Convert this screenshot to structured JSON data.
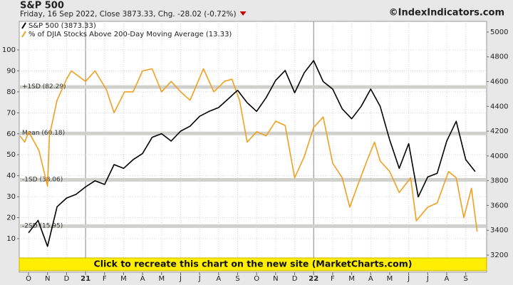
{
  "chart_data": {
    "type": "line",
    "title": "S&P 500",
    "subtitle": "Friday, 16 Sep 2022, Close 3873.33, Chg. -28.02 (-0.72%)",
    "watermark": "©IndexIndicators.com",
    "banner": "Click to recreate this chart on the new site (MarketCharts.com)",
    "xlim": [
      -0.49,
      24.1
    ],
    "xticks": [
      {
        "value": 0,
        "label": "O"
      },
      {
        "value": 1,
        "label": "N"
      },
      {
        "value": 2,
        "label": "D"
      },
      {
        "value": 3,
        "label": "21"
      },
      {
        "value": 4,
        "label": "F"
      },
      {
        "value": 5,
        "label": "M"
      },
      {
        "value": 6,
        "label": "A"
      },
      {
        "value": 7,
        "label": "M"
      },
      {
        "value": 8,
        "label": "J"
      },
      {
        "value": 9,
        "label": "J"
      },
      {
        "value": 10,
        "label": "A"
      },
      {
        "value": 11,
        "label": "S"
      },
      {
        "value": 12,
        "label": "O"
      },
      {
        "value": 13,
        "label": "N"
      },
      {
        "value": 14,
        "label": "D"
      },
      {
        "value": 15,
        "label": "22"
      },
      {
        "value": 16,
        "label": "F"
      },
      {
        "value": 17,
        "label": "M"
      },
      {
        "value": 18,
        "label": "A"
      },
      {
        "value": 19,
        "label": "M"
      },
      {
        "value": 20,
        "label": "J"
      },
      {
        "value": 21,
        "label": "J"
      },
      {
        "value": 22,
        "label": "A"
      },
      {
        "value": 23,
        "label": "S"
      }
    ],
    "year_ticks": [
      3,
      15
    ],
    "ylim": [
      -6,
      113.6
    ],
    "yticks": [
      10,
      20,
      30,
      40,
      50,
      60,
      70,
      80,
      90,
      100
    ],
    "y2lim": [
      3062,
      5086
    ],
    "y2ticks": [
      3200,
      3400,
      3600,
      3800,
      4000,
      4200,
      4400,
      4600,
      4800,
      5000
    ],
    "grid": true,
    "legend": "top-left",
    "bands": [
      {
        "label": "+1SD (82.29)",
        "value": 82.29
      },
      {
        "label": "Mean (60.18)",
        "value": 60.18
      },
      {
        "label": "-1SD (38.06)",
        "value": 38.06
      },
      {
        "label": "-2SD (15.95)",
        "value": 15.95
      }
    ],
    "series": [
      {
        "name": "S&P 500 (3873.33)",
        "color": "#000000",
        "axis": "y2",
        "x": [
          0,
          0.5,
          1,
          1.5,
          2,
          2.5,
          3,
          3.5,
          4,
          4.5,
          5,
          5.5,
          6,
          6.5,
          7,
          7.5,
          8,
          8.5,
          9,
          9.5,
          10,
          10.5,
          11,
          11.5,
          12,
          12.5,
          13,
          13.5,
          14,
          14.5,
          15,
          15.5,
          16,
          16.5,
          17,
          17.5,
          18,
          18.5,
          19,
          19.5,
          20,
          20.5,
          21,
          21.5,
          22,
          22.5,
          23,
          23.5
        ],
        "values": [
          3380,
          3480,
          3270,
          3590,
          3660,
          3690,
          3750,
          3800,
          3770,
          3930,
          3900,
          3970,
          4020,
          4150,
          4180,
          4120,
          4200,
          4240,
          4320,
          4360,
          4390,
          4460,
          4530,
          4430,
          4360,
          4470,
          4610,
          4690,
          4510,
          4670,
          4770,
          4600,
          4540,
          4380,
          4300,
          4400,
          4540,
          4400,
          4130,
          3900,
          4100,
          3670,
          3830,
          3860,
          4120,
          4280,
          3970,
          3873.33
        ]
      },
      {
        "name": "% of DJIA Stocks Above 200-Day Moving Average (13.33)",
        "color": "#f0a020",
        "x": [
          -0.45,
          -0.2,
          0,
          0.55,
          1,
          1.1,
          1.5,
          2,
          2.25,
          3,
          3.5,
          4.1,
          4.5,
          5.05,
          5.5,
          6,
          6.5,
          7,
          7.5,
          8,
          8.5,
          9.2,
          9.75,
          10.3,
          10.7,
          11.1,
          11.5,
          12,
          12.5,
          13,
          13.5,
          14,
          14.5,
          15,
          15.5,
          16,
          16.5,
          16.9,
          17.3,
          17.8,
          18.2,
          18.5,
          19,
          19.5,
          20.1,
          20.4,
          21,
          21.5,
          22.1,
          22.5,
          22.9,
          23.3,
          23.6
        ],
        "values": [
          59,
          56,
          61,
          52,
          35,
          59,
          76,
          86,
          90,
          85,
          90,
          81,
          70,
          80,
          80,
          90,
          91,
          80,
          85,
          80,
          76,
          91,
          80,
          85,
          86,
          76,
          56,
          61,
          59,
          66,
          64,
          39,
          49,
          63,
          68,
          46,
          39,
          25,
          35,
          47,
          56,
          47,
          42,
          32,
          39,
          18.5,
          25,
          27,
          42,
          39,
          20,
          34,
          13.33
        ]
      }
    ]
  }
}
